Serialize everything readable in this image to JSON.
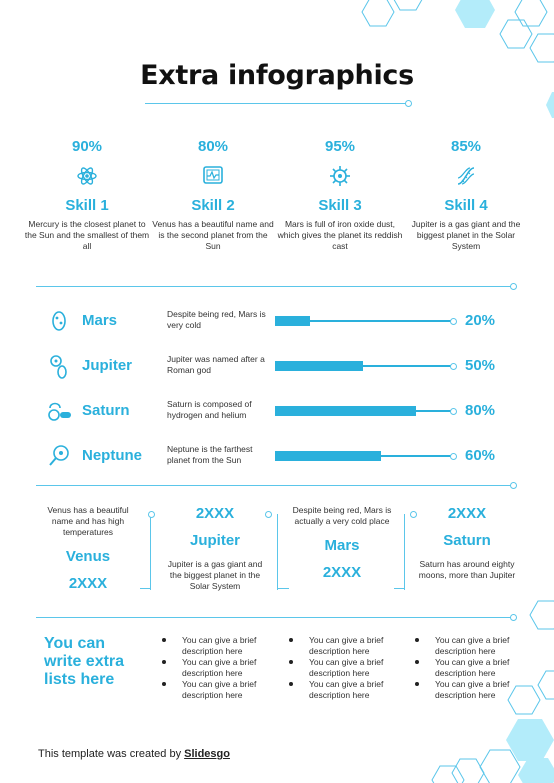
{
  "title": "Extra infographics",
  "skills": [
    {
      "percent": "90%",
      "icon": "atom-icon",
      "name": "Skill 1",
      "desc": "Mercury is the closest planet to the Sun and the smallest of them all"
    },
    {
      "percent": "80%",
      "icon": "monitor-chart-icon",
      "name": "Skill 2",
      "desc": "Venus has a beautiful name and is the second planet from the Sun"
    },
    {
      "percent": "95%",
      "icon": "virus-icon",
      "name": "Skill 3",
      "desc": "Mars is full of iron oxide dust, which gives the planet its reddish cast"
    },
    {
      "percent": "85%",
      "icon": "dna-icon",
      "name": "Skill 4",
      "desc": "Jupiter is a gas giant and the biggest planet in the Solar System"
    }
  ],
  "planets": [
    {
      "icon": "bacteria-icon",
      "name": "Mars",
      "desc": "Despite being red, Mars is very cold",
      "percent_label": "20%",
      "value": 0.2
    },
    {
      "icon": "cells-icon",
      "name": "Jupiter",
      "desc": "Jupiter was named after a Roman god",
      "percent_label": "50%",
      "value": 0.5
    },
    {
      "icon": "pills-icon",
      "name": "Saturn",
      "desc": "Saturn is composed of hydrogen and helium",
      "percent_label": "80%",
      "value": 0.8
    },
    {
      "icon": "magnifier-icon",
      "name": "Neptune",
      "desc": "Neptune is the farthest planet from the Sun",
      "percent_label": "60%",
      "value": 0.6
    }
  ],
  "timeline": [
    {
      "desc": "Venus has a beautiful name and has high temperatures",
      "name": "Venus",
      "year": "2XXX"
    },
    {
      "year": "2XXX",
      "name": "Jupiter",
      "desc": "Jupiter is a gas giant and the biggest planet in the Solar System"
    },
    {
      "desc": "Despite being red, Mars is actually a very cold place",
      "name": "Mars",
      "year": "2XXX"
    },
    {
      "year": "2XXX",
      "name": "Saturn",
      "desc": "Saturn has around eighty moons, more than Jupiter"
    }
  ],
  "lists": {
    "title": "You can write extra lists here",
    "columns": [
      [
        "You can give a brief description here",
        "You can give a brief description here",
        "You can give a brief description here"
      ],
      [
        "You can give a brief description here",
        "You can give a brief description here",
        "You can give a brief description here"
      ],
      [
        "You can give a brief description here",
        "You can give a brief description here",
        "You can give a brief description here"
      ]
    ]
  },
  "footer": {
    "text": "This template was created by ",
    "brand": "Slidesgo"
  },
  "colors": {
    "accent": "#2ab0dc",
    "light": "#5bc6ea",
    "hex_fill": "#b3ecfa"
  }
}
